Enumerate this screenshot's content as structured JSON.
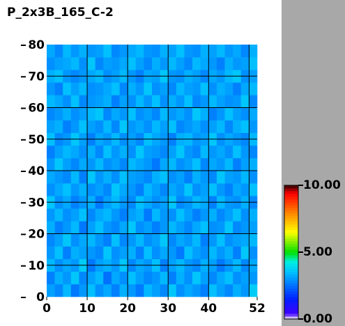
{
  "chart_data": {
    "type": "heatmap",
    "title": "P_2x3B_165_C-2",
    "xlim": [
      0,
      52
    ],
    "ylim": [
      0,
      80
    ],
    "xticks": [
      0,
      10,
      20,
      30,
      40,
      52
    ],
    "yticks": [
      0,
      10,
      20,
      30,
      40,
      50,
      60,
      70,
      80
    ],
    "xgrid": [
      10,
      20,
      30,
      40,
      50
    ],
    "ygrid": [
      10,
      20,
      30,
      40,
      50,
      60,
      70
    ],
    "colorbar_ticks": [
      {
        "value": 0,
        "label": "0.00"
      },
      {
        "value": 5,
        "label": "5.00"
      },
      {
        "value": 10,
        "label": "10.00"
      }
    ],
    "colorscale": [
      [
        0,
        "#ffffff"
      ],
      [
        0.4,
        "#4000ff"
      ],
      [
        1.5,
        "#0020ff"
      ],
      [
        2.5,
        "#0070ff"
      ],
      [
        3.5,
        "#00c0ff"
      ],
      [
        4.3,
        "#00f0e0"
      ],
      [
        5,
        "#00e000"
      ],
      [
        6.5,
        "#ffff00"
      ],
      [
        8,
        "#ff8000"
      ],
      [
        9.4,
        "#ff0000"
      ],
      [
        10,
        "#300000"
      ]
    ],
    "z": [
      [
        3.1,
        2.8,
        3.4,
        2.6,
        3.0,
        3.5,
        2.9,
        3.2,
        2.7,
        3.3,
        3.0,
        2.6,
        3.4,
        3.1,
        2.8,
        3.6,
        2.9,
        3.2,
        3.0,
        2.7,
        3.5,
        3.1,
        2.8,
        3.3,
        3.0,
        3.7
      ],
      [
        2.7,
        3.3,
        3.0,
        3.6,
        2.8,
        3.1,
        3.4,
        2.5,
        3.2,
        2.9,
        3.5,
        3.1,
        2.8,
        3.0,
        3.4,
        2.7,
        3.3,
        2.9,
        3.6,
        3.1,
        2.8,
        3.2,
        3.5,
        2.9,
        3.1,
        3.0
      ],
      [
        3.4,
        2.9,
        3.2,
        3.0,
        3.7,
        2.6,
        3.1,
        3.3,
        3.0,
        3.6,
        2.8,
        3.2,
        3.0,
        3.5,
        2.7,
        3.1,
        3.4,
        3.0,
        2.8,
        3.3,
        3.1,
        2.6,
        3.0,
        3.4,
        2.8,
        3.2
      ],
      [
        3.0,
        3.5,
        2.7,
        3.3,
        3.1,
        3.0,
        2.8,
        3.6,
        2.9,
        3.1,
        3.3,
        2.7,
        3.5,
        2.9,
        3.2,
        3.0,
        2.6,
        3.5,
        3.1,
        2.9,
        3.4,
        3.0,
        3.3,
        2.7,
        3.6,
        2.9
      ],
      [
        2.8,
        3.1,
        3.6,
        2.9,
        3.2,
        3.4,
        3.0,
        2.7,
        3.5,
        2.8,
        3.0,
        3.4,
        2.9,
        3.1,
        3.6,
        2.8,
        3.2,
        3.0,
        3.4,
        2.7,
        3.0,
        3.5,
        2.9,
        3.1,
        3.2,
        3.4
      ],
      [
        3.3,
        2.7,
        3.0,
        3.4,
        2.6,
        3.1,
        3.5,
        3.0,
        2.8,
        3.2,
        3.6,
        2.9,
        3.1,
        2.7,
        3.0,
        3.4,
        3.1,
        2.8,
        3.2,
        3.5,
        2.9,
        3.0,
        3.6,
        2.8,
        3.0,
        3.1
      ],
      [
        3.0,
        3.4,
        2.9,
        3.1,
        3.5,
        2.8,
        3.2,
        3.4,
        3.0,
        2.7,
        3.1,
        3.3,
        2.6,
        3.4,
        3.0,
        2.9,
        3.5,
        3.1,
        2.7,
        3.0,
        3.3,
        2.8,
        3.1,
        3.5,
        2.9,
        3.3
      ],
      [
        3.6,
        2.9,
        3.2,
        2.7,
        3.0,
        3.3,
        2.6,
        3.1,
        3.4,
        3.0,
        2.8,
        3.5,
        3.2,
        2.9,
        3.1,
        3.6,
        2.8,
        3.0,
        3.4,
        3.2,
        2.7,
        3.4,
        3.0,
        2.9,
        3.3,
        2.8
      ],
      [
        2.9,
        3.2,
        3.5,
        3.0,
        3.3,
        2.9,
        3.1,
        2.8,
        3.6,
        3.2,
        3.0,
        2.7,
        3.4,
        3.1,
        2.8,
        3.2,
        3.0,
        3.6,
        2.9,
        3.1,
        3.5,
        3.0,
        2.7,
        3.2,
        3.0,
        3.5
      ],
      [
        3.2,
        3.0,
        2.8,
        3.4,
        2.7,
        3.6,
        3.0,
        3.3,
        2.9,
        3.5,
        3.1,
        3.0,
        2.8,
        3.3,
        3.5,
        2.9,
        3.1,
        2.7,
        3.3,
        3.0,
        2.8,
        3.6,
        3.1,
        3.0,
        3.4,
        2.9
      ],
      [
        3.0,
        3.6,
        3.1,
        2.8,
        3.2,
        3.0,
        3.4,
        2.9,
        3.1,
        2.8,
        3.4,
        3.2,
        3.0,
        2.6,
        3.2,
        3.4,
        2.9,
        3.1,
        3.5,
        2.8,
        3.2,
        3.0,
        3.4,
        2.7,
        3.1,
        3.3
      ],
      [
        2.7,
        3.1,
        3.4,
        3.2,
        2.9,
        3.3,
        2.8,
        3.5,
        3.0,
        3.3,
        2.9,
        3.6,
        3.1,
        3.0,
        2.8,
        3.1,
        3.6,
        3.0,
        2.8,
        3.4,
        3.0,
        3.2,
        2.9,
        3.5,
        3.0,
        2.8
      ],
      [
        3.5,
        2.8,
        3.0,
        3.6,
        3.1,
        2.7,
        3.2,
        3.0,
        3.4,
        2.9,
        3.1,
        2.8,
        3.5,
        3.2,
        3.0,
        2.7,
        3.3,
        3.4,
        3.0,
        3.1,
        3.6,
        2.9,
        3.2,
        3.0,
        2.8,
        3.4
      ],
      [
        3.1,
        3.3,
        2.7,
        3.0,
        3.5,
        3.1,
        2.9,
        3.4,
        2.8,
        3.6,
        3.0,
        3.2,
        2.9,
        3.4,
        3.1,
        3.5,
        2.8,
        3.0,
        3.2,
        2.9,
        3.1,
        3.4,
        2.8,
        3.3,
        3.5,
        3.0
      ],
      [
        2.8,
        3.0,
        3.3,
        2.9,
        3.1,
        3.4,
        3.6,
        2.8,
        3.2,
        3.0,
        3.5,
        2.9,
        3.1,
        2.8,
        3.4,
        3.0,
        3.2,
        2.9,
        3.6,
        3.3,
        2.7,
        3.0,
        3.5,
        3.1,
        2.9,
        3.2
      ],
      [
        3.4,
        3.2,
        2.9,
        3.5,
        2.8,
        3.0,
        3.1,
        3.3,
        2.7,
        3.1,
        2.9,
        3.4,
        3.0,
        3.5,
        2.9,
        3.3,
        3.0,
        3.5,
        2.8,
        3.0,
        3.4,
        3.1,
        2.9,
        3.0,
        3.6,
        2.8
      ],
      [
        3.0,
        2.7,
        3.5,
        3.1,
        3.4,
        2.9,
        3.0,
        3.2,
        3.5,
        2.8,
        3.3,
        3.0,
        3.6,
        2.9,
        3.1,
        2.8,
        3.4,
        3.1,
        3.0,
        3.5,
        2.9,
        3.3,
        3.1,
        2.7,
        3.2,
        3.4
      ],
      [
        3.3,
        3.5,
        3.0,
        2.8,
        3.0,
        3.2,
        3.4,
        2.9,
        3.1,
        3.4,
        3.0,
        2.7,
        3.2,
        3.1,
        3.6,
        3.0,
        2.9,
        3.3,
        3.1,
        2.8,
        3.2,
        3.0,
        3.4,
        3.6,
        2.9,
        3.1
      ],
      [
        2.9,
        3.1,
        3.2,
        3.4,
        2.9,
        3.6,
        2.8,
        3.1,
        3.0,
        3.2,
        3.5,
        3.1,
        2.8,
        3.3,
        3.0,
        3.4,
        3.1,
        2.8,
        3.4,
        3.2,
        3.0,
        2.7,
        3.3,
        3.0,
        3.1,
        3.5
      ],
      [
        3.2,
        2.8,
        3.4,
        3.0,
        3.3,
        3.0,
        3.1,
        3.5,
        2.8,
        3.0,
        3.2,
        3.4,
        3.0,
        2.9,
        3.3,
        3.1,
        3.5,
        3.0,
        2.9,
        3.3,
        3.1,
        3.4,
        3.0,
        3.2,
        2.8,
        3.3
      ]
    ]
  }
}
